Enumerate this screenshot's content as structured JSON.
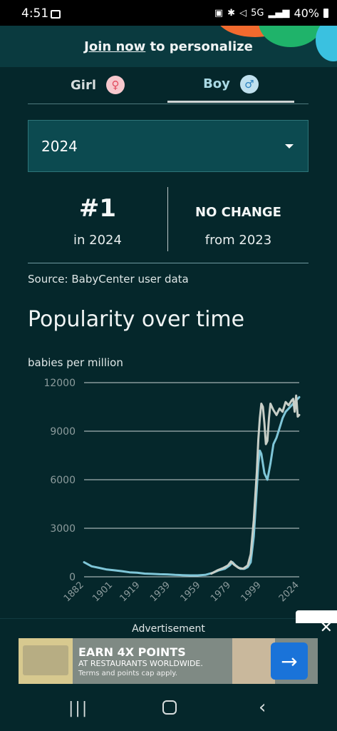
{
  "status_bar": {
    "time": "4:51",
    "network": "5G",
    "battery": "40%"
  },
  "banner": {
    "link_text": "Join now",
    "rest_text": " to personalize"
  },
  "tabs": [
    {
      "label": "Girl",
      "symbol": "♀"
    },
    {
      "label": "Boy",
      "symbol": "♂"
    }
  ],
  "year_select": {
    "value": "2024"
  },
  "rank": {
    "value": "#1",
    "year_text": "in 2024",
    "change": "NO CHANGE",
    "from_text": "from 2023"
  },
  "source": "Source: BabyCenter user data",
  "section_title": "Popularity over time",
  "unit_label": "babies per million",
  "chart_data": {
    "type": "line",
    "ylim": [
      0,
      12000
    ],
    "yticks": [
      "12000",
      "9000",
      "6000",
      "3000",
      "0"
    ],
    "xticks": [
      "1882",
      "1901",
      "1919",
      "1939",
      "1959",
      "1979",
      "1999",
      "2024"
    ],
    "grid": true,
    "series": [
      {
        "color": "#7fc6d8",
        "x": [
          1882,
          1887,
          1892,
          1897,
          1902,
          1907,
          1912,
          1917,
          1922,
          1927,
          1932,
          1937,
          1942,
          1947,
          1952,
          1957,
          1962,
          1967,
          1971,
          1975,
          1978,
          1980,
          1982,
          1985,
          1988,
          1990,
          1992,
          1994,
          1996,
          1997,
          1998,
          1999,
          2001,
          2003,
          2005,
          2007,
          2009,
          2011,
          2013,
          2015,
          2017,
          2019,
          2021,
          2023,
          2024
        ],
        "values": [
          900,
          650,
          550,
          450,
          400,
          350,
          280,
          250,
          200,
          180,
          160,
          150,
          120,
          100,
          90,
          90,
          120,
          250,
          400,
          500,
          700,
          900,
          700,
          500,
          500,
          600,
          900,
          2500,
          5500,
          7000,
          7800,
          7600,
          6400,
          6000,
          7000,
          8200,
          8600,
          9200,
          9800,
          10200,
          10400,
          10600,
          10800,
          11000,
          11100
        ]
      },
      {
        "color": "#c7cec7",
        "x": [
          1966,
          1970,
          1974,
          1977,
          1979,
          1981,
          1984,
          1987,
          1990,
          1992,
          1994,
          1996,
          1997,
          1998,
          1999,
          2000,
          2001,
          2002,
          2003,
          2004,
          2005,
          2007,
          2009,
          2011,
          2013,
          2015,
          2017,
          2019,
          2020,
          2021,
          2022,
          2023,
          2024
        ],
        "values": [
          200,
          400,
          550,
          700,
          950,
          750,
          550,
          500,
          700,
          1400,
          3500,
          6500,
          8500,
          9800,
          10700,
          10500,
          9500,
          8200,
          8400,
          9800,
          10700,
          10300,
          10000,
          10400,
          10200,
          10800,
          10600,
          10900,
          11000,
          10200,
          11200,
          9900,
          10000
        ]
      }
    ]
  },
  "ad": {
    "label": "Advertisement",
    "headline": "EARN 4X POINTS",
    "sub": "AT RESTAURANTS WORLDWIDE.",
    "fine": "Terms and points cap apply."
  },
  "icons": {
    "close": "close-icon",
    "dropdown": "chevron-down-icon",
    "arrow": "arrow-right-icon"
  }
}
